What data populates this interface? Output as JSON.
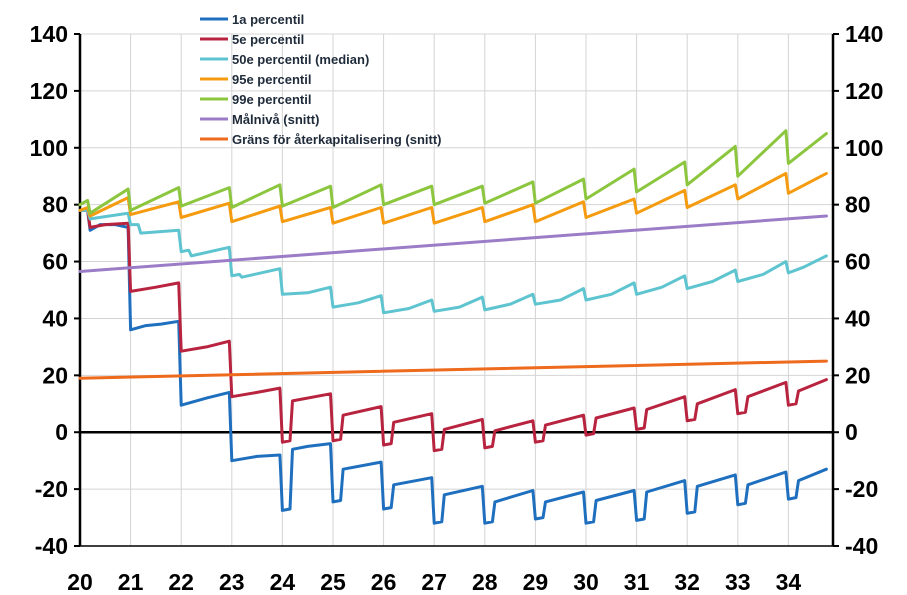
{
  "chart_data": {
    "type": "line",
    "title": "",
    "xlabel": "",
    "ylabel": "",
    "xlim": [
      20,
      34.8
    ],
    "ylim": [
      -40,
      140
    ],
    "yticks": [
      -40,
      -20,
      0,
      20,
      40,
      60,
      80,
      100,
      120,
      140
    ],
    "xticks": [
      20,
      21,
      22,
      23,
      24,
      25,
      26,
      27,
      28,
      29,
      30,
      31,
      32,
      33,
      34
    ],
    "grid": true,
    "right_axis_mirrors_left": true,
    "legend_position": "top-center",
    "series": [
      {
        "name": "1a percentil",
        "color": "#1f6fbf",
        "points": [
          [
            20,
            78
          ],
          [
            20.15,
            78
          ],
          [
            20.2,
            71
          ],
          [
            20.4,
            73
          ],
          [
            20.7,
            73
          ],
          [
            20.95,
            72
          ],
          [
            21.0,
            36
          ],
          [
            21.3,
            37.5
          ],
          [
            21.6,
            38
          ],
          [
            21.95,
            39
          ],
          [
            22.0,
            9.5
          ],
          [
            22.5,
            12
          ],
          [
            22.95,
            14
          ],
          [
            23.0,
            -10
          ],
          [
            23.5,
            -8.5
          ],
          [
            23.95,
            -8
          ],
          [
            24.0,
            -27.5
          ],
          [
            24.15,
            -27
          ],
          [
            24.2,
            -6
          ],
          [
            24.5,
            -5
          ],
          [
            24.95,
            -4
          ],
          [
            25.0,
            -24.5
          ],
          [
            25.15,
            -24
          ],
          [
            25.2,
            -13
          ],
          [
            25.95,
            -10.5
          ],
          [
            26.0,
            -27
          ],
          [
            26.15,
            -26.5
          ],
          [
            26.2,
            -18.5
          ],
          [
            26.95,
            -16
          ],
          [
            27.0,
            -32
          ],
          [
            27.15,
            -31.5
          ],
          [
            27.2,
            -22
          ],
          [
            27.95,
            -19
          ],
          [
            28.0,
            -32
          ],
          [
            28.15,
            -31.5
          ],
          [
            28.2,
            -24.5
          ],
          [
            28.95,
            -20.5
          ],
          [
            29.0,
            -30.5
          ],
          [
            29.15,
            -30
          ],
          [
            29.2,
            -24.5
          ],
          [
            29.95,
            -21
          ],
          [
            30.0,
            -32
          ],
          [
            30.15,
            -31.5
          ],
          [
            30.2,
            -24
          ],
          [
            30.95,
            -20.5
          ],
          [
            31.0,
            -31
          ],
          [
            31.15,
            -30.5
          ],
          [
            31.2,
            -21
          ],
          [
            31.95,
            -17
          ],
          [
            32.0,
            -28.5
          ],
          [
            32.15,
            -28
          ],
          [
            32.2,
            -19
          ],
          [
            32.95,
            -15
          ],
          [
            33.0,
            -25.5
          ],
          [
            33.15,
            -25
          ],
          [
            33.2,
            -18.5
          ],
          [
            33.95,
            -14
          ],
          [
            34.0,
            -23.5
          ],
          [
            34.15,
            -23
          ],
          [
            34.2,
            -17
          ],
          [
            34.75,
            -13
          ]
        ]
      },
      {
        "name": "5e percentil",
        "color": "#b8243f",
        "points": [
          [
            20,
            78
          ],
          [
            20.15,
            78
          ],
          [
            20.2,
            72
          ],
          [
            20.5,
            73
          ],
          [
            20.95,
            73.5
          ],
          [
            21.0,
            49.5
          ],
          [
            21.5,
            51
          ],
          [
            21.95,
            52.5
          ],
          [
            22.0,
            28.5
          ],
          [
            22.5,
            30
          ],
          [
            22.95,
            32
          ],
          [
            23.0,
            12.5
          ],
          [
            23.5,
            14
          ],
          [
            23.95,
            15.5
          ],
          [
            24.0,
            -3.5
          ],
          [
            24.15,
            -3
          ],
          [
            24.2,
            11
          ],
          [
            24.95,
            13.5
          ],
          [
            25.0,
            -3
          ],
          [
            25.15,
            -2.5
          ],
          [
            25.2,
            6
          ],
          [
            25.95,
            9
          ],
          [
            26.0,
            -4.5
          ],
          [
            26.15,
            -4
          ],
          [
            26.2,
            3.5
          ],
          [
            26.95,
            6.5
          ],
          [
            27.0,
            -6.5
          ],
          [
            27.15,
            -6
          ],
          [
            27.2,
            1
          ],
          [
            27.95,
            4.5
          ],
          [
            28.0,
            -5.5
          ],
          [
            28.15,
            -5
          ],
          [
            28.2,
            0.5
          ],
          [
            28.95,
            4
          ],
          [
            29.0,
            -3.5
          ],
          [
            29.15,
            -3
          ],
          [
            29.2,
            2.5
          ],
          [
            29.95,
            6
          ],
          [
            30.0,
            -1
          ],
          [
            30.15,
            -0.5
          ],
          [
            30.2,
            5
          ],
          [
            30.95,
            8.5
          ],
          [
            31.0,
            1
          ],
          [
            31.15,
            1.5
          ],
          [
            31.2,
            8
          ],
          [
            31.95,
            12.5
          ],
          [
            32.0,
            4
          ],
          [
            32.15,
            4.5
          ],
          [
            32.2,
            10
          ],
          [
            32.95,
            15
          ],
          [
            33.0,
            6.5
          ],
          [
            33.15,
            7
          ],
          [
            33.2,
            12.5
          ],
          [
            33.95,
            17.5
          ],
          [
            34.0,
            9.5
          ],
          [
            34.15,
            10
          ],
          [
            34.2,
            14.5
          ],
          [
            34.75,
            18.5
          ]
        ]
      },
      {
        "name": "50e percentil (median)",
        "color": "#5ec4d0",
        "points": [
          [
            20,
            78
          ],
          [
            20.15,
            78
          ],
          [
            20.2,
            75
          ],
          [
            20.95,
            77
          ],
          [
            21.0,
            73
          ],
          [
            21.15,
            73
          ],
          [
            21.2,
            70
          ],
          [
            21.95,
            71
          ],
          [
            22.0,
            63.5
          ],
          [
            22.15,
            64
          ],
          [
            22.2,
            62
          ],
          [
            22.95,
            65
          ],
          [
            23.0,
            55
          ],
          [
            23.15,
            55.5
          ],
          [
            23.2,
            54.5
          ],
          [
            23.95,
            57.5
          ],
          [
            24.0,
            48.5
          ],
          [
            24.5,
            49
          ],
          [
            24.95,
            51
          ],
          [
            25.0,
            44
          ],
          [
            25.5,
            45.5
          ],
          [
            25.95,
            48
          ],
          [
            26.0,
            42
          ],
          [
            26.5,
            43.5
          ],
          [
            26.95,
            46.5
          ],
          [
            27.0,
            42.5
          ],
          [
            27.5,
            44
          ],
          [
            27.95,
            47.5
          ],
          [
            28.0,
            43
          ],
          [
            28.5,
            45
          ],
          [
            28.95,
            48.5
          ],
          [
            29.0,
            45
          ],
          [
            29.5,
            46.5
          ],
          [
            29.95,
            50.5
          ],
          [
            30.0,
            46.5
          ],
          [
            30.5,
            48.5
          ],
          [
            30.95,
            52.5
          ],
          [
            31.0,
            48.5
          ],
          [
            31.5,
            51
          ],
          [
            31.95,
            55
          ],
          [
            32.0,
            50.5
          ],
          [
            32.5,
            53
          ],
          [
            32.95,
            57
          ],
          [
            33.0,
            53
          ],
          [
            33.5,
            55.5
          ],
          [
            33.95,
            60
          ],
          [
            34.0,
            56
          ],
          [
            34.3,
            58
          ],
          [
            34.75,
            62
          ]
        ]
      },
      {
        "name": "95e percentil",
        "color": "#f59b10",
        "points": [
          [
            20,
            78
          ],
          [
            20.15,
            79
          ],
          [
            20.2,
            76
          ],
          [
            20.95,
            82.5
          ],
          [
            21.0,
            76.5
          ],
          [
            21.95,
            81
          ],
          [
            22.0,
            75.5
          ],
          [
            22.95,
            80.5
          ],
          [
            23.0,
            74
          ],
          [
            23.95,
            79.5
          ],
          [
            24.0,
            74
          ],
          [
            24.95,
            79
          ],
          [
            25.0,
            73.5
          ],
          [
            25.95,
            79
          ],
          [
            26.0,
            73.5
          ],
          [
            26.95,
            79
          ],
          [
            27.0,
            73.5
          ],
          [
            27.95,
            79
          ],
          [
            28.0,
            74
          ],
          [
            28.95,
            80
          ],
          [
            29.0,
            74
          ],
          [
            29.95,
            81
          ],
          [
            30.0,
            75.5
          ],
          [
            30.95,
            82
          ],
          [
            31.0,
            77
          ],
          [
            31.95,
            85
          ],
          [
            32.0,
            79
          ],
          [
            32.95,
            87
          ],
          [
            33.0,
            82
          ],
          [
            33.95,
            91
          ],
          [
            34.0,
            84
          ],
          [
            34.75,
            91
          ]
        ]
      },
      {
        "name": "99e percentil",
        "color": "#8cc63f",
        "points": [
          [
            20,
            80
          ],
          [
            20.15,
            81.5
          ],
          [
            20.2,
            77
          ],
          [
            20.95,
            85.5
          ],
          [
            21.0,
            78
          ],
          [
            21.95,
            86
          ],
          [
            22.0,
            79.5
          ],
          [
            22.95,
            86
          ],
          [
            23.0,
            79
          ],
          [
            23.95,
            87
          ],
          [
            24.0,
            79.5
          ],
          [
            24.95,
            86.5
          ],
          [
            25.0,
            79
          ],
          [
            25.95,
            87
          ],
          [
            26.0,
            80
          ],
          [
            26.95,
            86.5
          ],
          [
            27.0,
            80
          ],
          [
            27.95,
            86.5
          ],
          [
            28.0,
            80.5
          ],
          [
            28.95,
            88
          ],
          [
            29.0,
            80.5
          ],
          [
            29.95,
            89
          ],
          [
            30.0,
            82
          ],
          [
            30.95,
            92.5
          ],
          [
            31.0,
            84.5
          ],
          [
            31.95,
            95
          ],
          [
            32.0,
            87
          ],
          [
            32.95,
            100.5
          ],
          [
            33.0,
            90
          ],
          [
            33.95,
            106
          ],
          [
            34.0,
            94.5
          ],
          [
            34.75,
            105
          ]
        ]
      },
      {
        "name": "Målnivå (snitt)",
        "color": "#9b7cc6",
        "points": [
          [
            20,
            56.5
          ],
          [
            34.75,
            76
          ]
        ]
      },
      {
        "name": "Gräns för återkapitalisering (snitt)",
        "color": "#ee6a1d",
        "points": [
          [
            20,
            19
          ],
          [
            34.75,
            25
          ]
        ]
      }
    ]
  }
}
